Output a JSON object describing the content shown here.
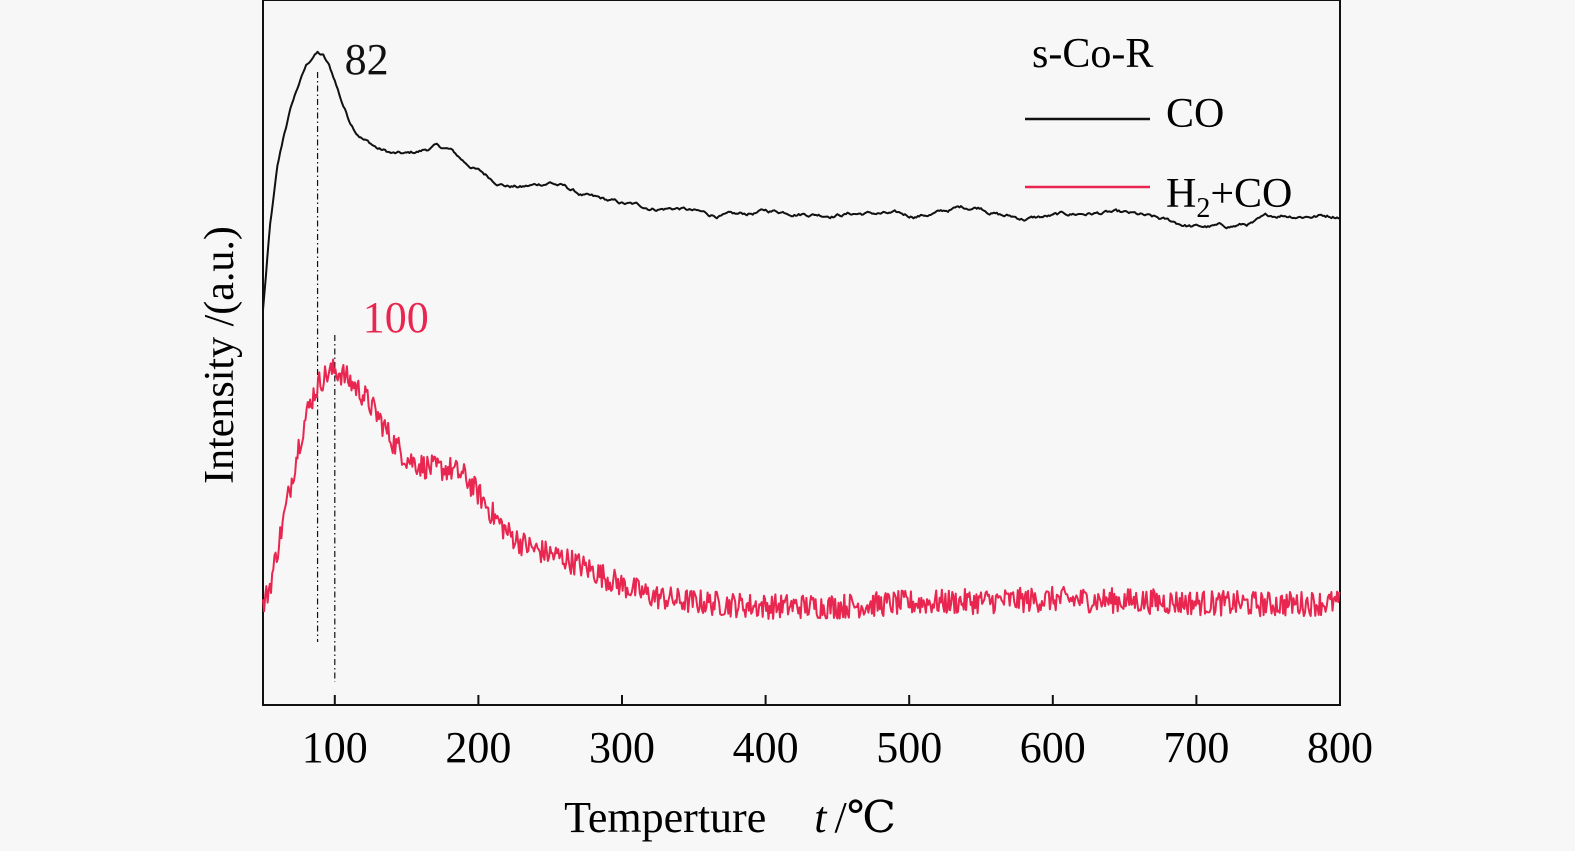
{
  "chart_data": {
    "type": "line",
    "xlabel_main": "Temperture",
    "xlabel_var": "t",
    "xlabel_unit": "/℃",
    "ylabel": "Intensity /(a.u.)",
    "xlim": [
      50,
      800
    ],
    "xticks": [
      100,
      200,
      300,
      400,
      500,
      600,
      700,
      800
    ],
    "y_units": "arbitrary",
    "ylim": [
      0,
      1
    ],
    "grid": false,
    "legend": {
      "title": "s-Co-R",
      "position": "top-right",
      "entries": [
        {
          "label_main": "CO",
          "label_sub": "",
          "label_tail": "",
          "color": "#111111"
        },
        {
          "label_main": "H",
          "label_sub": "2",
          "label_tail": "+CO",
          "color": "#e8264f"
        }
      ]
    },
    "series": [
      {
        "name": "CO",
        "color": "#111111",
        "noise": 0.004,
        "points": [
          [
            50,
            0.56
          ],
          [
            55,
            0.68
          ],
          [
            60,
            0.76
          ],
          [
            65,
            0.81
          ],
          [
            70,
            0.85
          ],
          [
            75,
            0.88
          ],
          [
            80,
            0.905
          ],
          [
            85,
            0.92
          ],
          [
            88,
            0.925
          ],
          [
            92,
            0.92
          ],
          [
            96,
            0.905
          ],
          [
            100,
            0.885
          ],
          [
            105,
            0.855
          ],
          [
            110,
            0.83
          ],
          [
            115,
            0.815
          ],
          [
            120,
            0.805
          ],
          [
            130,
            0.79
          ],
          [
            140,
            0.782
          ],
          [
            150,
            0.78
          ],
          [
            160,
            0.785
          ],
          [
            170,
            0.792
          ],
          [
            180,
            0.787
          ],
          [
            190,
            0.77
          ],
          [
            200,
            0.758
          ],
          [
            210,
            0.745
          ],
          [
            220,
            0.738
          ],
          [
            230,
            0.735
          ],
          [
            240,
            0.737
          ],
          [
            250,
            0.742
          ],
          [
            260,
            0.735
          ],
          [
            270,
            0.725
          ],
          [
            280,
            0.718
          ],
          [
            300,
            0.71
          ],
          [
            320,
            0.705
          ],
          [
            340,
            0.705
          ],
          [
            360,
            0.695
          ],
          [
            380,
            0.693
          ],
          [
            400,
            0.7
          ],
          [
            420,
            0.7
          ],
          [
            440,
            0.697
          ],
          [
            460,
            0.698
          ],
          [
            480,
            0.697
          ],
          [
            500,
            0.693
          ],
          [
            520,
            0.698
          ],
          [
            535,
            0.705
          ],
          [
            550,
            0.707
          ],
          [
            565,
            0.695
          ],
          [
            580,
            0.69
          ],
          [
            600,
            0.693
          ],
          [
            620,
            0.697
          ],
          [
            640,
            0.698
          ],
          [
            660,
            0.693
          ],
          [
            680,
            0.685
          ],
          [
            700,
            0.678
          ],
          [
            720,
            0.678
          ],
          [
            740,
            0.683
          ],
          [
            750,
            0.691
          ],
          [
            760,
            0.695
          ],
          [
            780,
            0.695
          ],
          [
            800,
            0.695
          ]
        ]
      },
      {
        "name": "H2+CO",
        "color": "#e8264f",
        "noise": 0.018,
        "points": [
          [
            50,
            0.14
          ],
          [
            55,
            0.17
          ],
          [
            60,
            0.22
          ],
          [
            65,
            0.27
          ],
          [
            70,
            0.32
          ],
          [
            75,
            0.37
          ],
          [
            80,
            0.41
          ],
          [
            85,
            0.44
          ],
          [
            90,
            0.46
          ],
          [
            95,
            0.47
          ],
          [
            100,
            0.475
          ],
          [
            105,
            0.47
          ],
          [
            110,
            0.46
          ],
          [
            120,
            0.44
          ],
          [
            130,
            0.41
          ],
          [
            140,
            0.375
          ],
          [
            150,
            0.35
          ],
          [
            160,
            0.34
          ],
          [
            170,
            0.335
          ],
          [
            180,
            0.335
          ],
          [
            190,
            0.325
          ],
          [
            200,
            0.3
          ],
          [
            210,
            0.27
          ],
          [
            220,
            0.245
          ],
          [
            230,
            0.23
          ],
          [
            240,
            0.22
          ],
          [
            260,
            0.208
          ],
          [
            280,
            0.19
          ],
          [
            300,
            0.17
          ],
          [
            320,
            0.155
          ],
          [
            340,
            0.148
          ],
          [
            360,
            0.145
          ],
          [
            380,
            0.142
          ],
          [
            400,
            0.14
          ],
          [
            450,
            0.14
          ],
          [
            500,
            0.145
          ],
          [
            550,
            0.147
          ],
          [
            600,
            0.15
          ],
          [
            650,
            0.148
          ],
          [
            700,
            0.145
          ],
          [
            750,
            0.143
          ],
          [
            800,
            0.145
          ]
        ]
      }
    ],
    "annotations": [
      {
        "text": "82",
        "x": 88,
        "color": "#111111",
        "series": "CO"
      },
      {
        "text": "100",
        "x": 100,
        "color": "#e8264f",
        "series": "H2+CO"
      }
    ]
  }
}
